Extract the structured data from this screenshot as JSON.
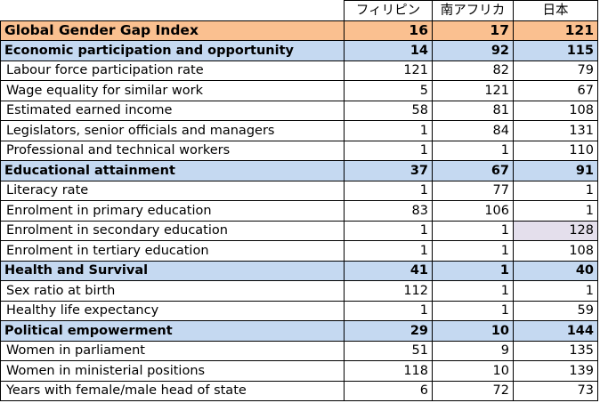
{
  "columns": [
    "フィリピン",
    "南アフリカ",
    "日本"
  ],
  "rows": [
    {
      "type": "index",
      "label": "Global Gender Gap Index",
      "values": [
        "16",
        "17",
        "121"
      ]
    },
    {
      "type": "category",
      "label": "Economic participation and opportunity",
      "values": [
        "14",
        "92",
        "115"
      ]
    },
    {
      "type": "sub",
      "label": "Labour force participation rate",
      "values": [
        "121",
        "82",
        "79"
      ]
    },
    {
      "type": "sub",
      "label": "Wage equality for similar work",
      "values": [
        "5",
        "121",
        "67"
      ]
    },
    {
      "type": "sub",
      "label": "Estimated earned income",
      "values": [
        "58",
        "81",
        "108"
      ]
    },
    {
      "type": "sub",
      "label": "Legislators, senior officials and managers",
      "values": [
        "1",
        "84",
        "131"
      ]
    },
    {
      "type": "sub",
      "label": "Professional and technical workers",
      "values": [
        "1",
        "1",
        "110"
      ]
    },
    {
      "type": "category",
      "label": "Educational attainment",
      "values": [
        "37",
        "67",
        "91"
      ]
    },
    {
      "type": "sub",
      "label": "Literacy rate",
      "values": [
        "1",
        "77",
        "1"
      ]
    },
    {
      "type": "sub",
      "label": "Enrolment in primary education",
      "values": [
        "83",
        "106",
        "1"
      ]
    },
    {
      "type": "sub",
      "label": "Enrolment in secondary education",
      "values": [
        "1",
        "1",
        "128"
      ],
      "highlight": 2
    },
    {
      "type": "sub",
      "label": "Enrolment in tertiary education",
      "values": [
        "1",
        "1",
        "108"
      ]
    },
    {
      "type": "category",
      "label": "Health and Survival",
      "values": [
        "41",
        "1",
        "40"
      ]
    },
    {
      "type": "sub",
      "label": "Sex ratio at birth",
      "values": [
        "112",
        "1",
        "1"
      ]
    },
    {
      "type": "sub",
      "label": "Healthy life expectancy",
      "values": [
        "1",
        "1",
        "59"
      ]
    },
    {
      "type": "category",
      "label": "Political empowerment",
      "values": [
        "29",
        "10",
        "144"
      ]
    },
    {
      "type": "sub",
      "label": "Women in parliament",
      "values": [
        "51",
        "9",
        "135"
      ]
    },
    {
      "type": "sub",
      "label": "Women in ministerial positions",
      "values": [
        "118",
        "10",
        "139"
      ]
    },
    {
      "type": "sub",
      "label": "Years with female/male head of state",
      "values": [
        "6",
        "72",
        "73"
      ]
    }
  ],
  "colors": {
    "index_fill": "#fac090",
    "category_fill": "#c5d9f1",
    "highlight_fill": "#e4dfec"
  }
}
